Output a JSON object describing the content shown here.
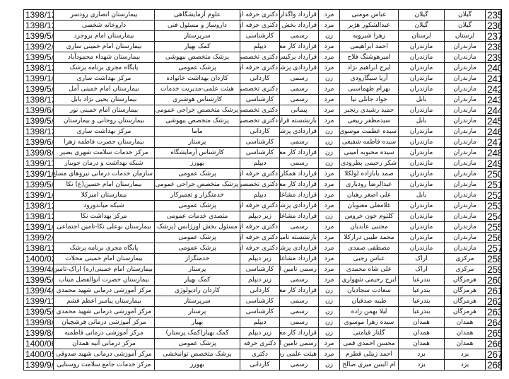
{
  "sheet": {
    "columns": [
      "date",
      "workplace",
      "field",
      "education",
      "contract",
      "gender",
      "name",
      "city",
      "province",
      "row_no"
    ],
    "rows": [
      [
        "1398/12",
        "بیمارستان انصاری رودسر",
        "علوم آزمایشگاهی",
        "دکتری حرفه ای",
        "قرارداد واگذاری",
        "مرد",
        "عباس مومنی",
        "گیلان",
        "گیلان",
        "235"
      ],
      [
        "1398/12",
        "داروخانه شخصی",
        "داروساز و مسئول فنی",
        "دکتری حرفه ای",
        "قرارداد بخش خصوصی",
        "مرد",
        "عبدالشکور هژبر",
        "گیلان",
        "گیلان",
        "236"
      ],
      [
        "1399/5/",
        "بیمارستان امام بروجرد",
        "سرپرستار",
        "کارشناسی",
        "رسمی",
        "زن",
        "زهرا شیرویه",
        "لرستان",
        "لرستان",
        "237"
      ],
      [
        "1399/2/",
        "بیمارستان امام خمینی ساری",
        "کمک بهیار",
        "دیپلم",
        "قرارداد کار معین",
        "مرد",
        "احمد ابراهیمی",
        "مازندران",
        "مازندران",
        "238"
      ],
      [
        "1399/5/",
        "بیمارستان شهداء محمودآباد",
        "پزشک متخصص بیهوشی",
        "دکتری تخصصی",
        "قرارداد پرکیس -خرید",
        "مرد",
        "امیرهوشنگ فلاح",
        "مازندران",
        "مازندران",
        "239"
      ],
      [
        "1398/12",
        "پایگاه مجری برنامه پزشک",
        "پزشک عمومی",
        "دکتری حرفه ای",
        "قراردادی پزشک",
        "مرد",
        "ایرج ابراهیم نژاد",
        "مازندران",
        "مازندران",
        "240"
      ],
      [
        "1399/1/",
        "مرکز بهداشت ساری",
        "کاردان بهداشت خانواده",
        "کاردانی",
        "رسمی",
        "زن",
        "آریا سیگارودی",
        "مازندران",
        "مازندران",
        "241"
      ],
      [
        "1399/5/",
        "بیمارستان امام خمینی آمل",
        "هیئت علمی-مدیریت خدمات",
        "دکتری تخصصی",
        "رسمی",
        "مرد",
        "بهرام طهماسبی",
        "مازندران",
        "مازندران",
        "242"
      ],
      [
        "1398/12",
        "بیمارستان یحیی نژاد بابل",
        "کارشناس هوشبری",
        "کارشناسی",
        "رسمی",
        "مرد",
        "جواد جانلی نیا",
        "بابل",
        "مازندران",
        "243"
      ],
      [
        "1399/6/",
        "بیمارستان امام خمینی نور",
        "پزشک متخصص جراحی عمومی",
        "دکتری تخصصی",
        "پیمانی",
        "مرد",
        "حمید رشیدی رنجبر",
        "مازندران",
        "مازندران",
        "244"
      ],
      [
        "1399/5/",
        "بیمارستان روحانی و بیمارستان",
        "پزشک متخصص بیهوشی",
        "دکتری تخصصی",
        "بازنشسته قرارداد پرکیس",
        "مرد",
        "سیدمظفر ربیعی",
        "بابل",
        "مازندران",
        "245"
      ],
      [
        "1398/12",
        "مرکز بهداشت ساری",
        "ماما",
        "کاردانی",
        "قراردادی پزشک",
        "زن",
        "سیده عظمت موسوی",
        "مازندران",
        "مازندران",
        "246"
      ],
      [
        "1399/6/",
        "بیمارستان حضرت فاطمه زهرا",
        "پرستار",
        "کارشناسی",
        "رسمی",
        "زن",
        "سیده فاطمه شفیعی",
        "مازندران",
        "مازندران",
        "247"
      ],
      [
        "1399/8/",
        "مرکز خدمات سلامت شهری بصیر",
        "کارشناس آزمایشگاه",
        "کارشناسی",
        "قرارداد کار معین",
        "زن",
        "سیده محبوبه امینی",
        "مازندران",
        "مازندران",
        "248"
      ],
      [
        "1399/11",
        "شبکه بهداشت و درمان جویبار",
        "بهورز",
        "دیپلم",
        "رسمی",
        "زن",
        "شکر رحیمی پطرودی",
        "مازندران",
        "مازندران",
        "249"
      ],
      [
        "1399/1/",
        "سازمان خدمات درمانی نیروهای مسلح",
        "پزشک عمومی",
        "دکتری حرفه ای",
        "قرارداد همکاری",
        "مرد",
        "صمد بابازاده لولکلا",
        "مازندران",
        "مازندران",
        "250"
      ],
      [
        "1399/5/",
        "بیمارستان امام حسین(ع) نکا",
        "پزشک متخصص جراحی عمومی",
        "دکتری تخصصی",
        "قرارداد کار معین",
        "مرد",
        "عبدالرضا رودباری",
        "مازندران",
        "مازندران",
        "251"
      ],
      [
        "1399/1/",
        "بیمارستان امیرکلا",
        "خدمتگزار و تعمیرکار",
        "دیپلم",
        "قرارداد مشاغل کارگری",
        "مرد",
        "علی اصغر رهبان",
        "بابل",
        "مازندران",
        "252"
      ],
      [
        "1398/12",
        "شبکه میاندورود",
        "پزشک عمومی",
        "دکتری حرفه ای",
        "قراردادی پزشک",
        "مرد",
        "غلامعلی معنوبان",
        "مازندران",
        "مازندران",
        "253"
      ],
      [
        "1398/12",
        "مرکز بهداشت نکا",
        "متصدی خدمات عمومی",
        "زیر دیپلم",
        "قرارداد مشاغل کارگری",
        "زن",
        "کلثوم خون خروس",
        "مازندران",
        "مازندران",
        "254"
      ],
      [
        "1399/1/",
        "بیمارستان بوعلی نکا-تامین اجتماعی",
        "مسئول بخش اورژانس (پزشک",
        "دکتری حرفه ای",
        "رسمی",
        "مرد",
        "مجتبی عابدیان",
        "مازندران",
        "مازندران",
        "255"
      ],
      [
        "1399/2/",
        "",
        "پزشک عمومی",
        "دکتری حرفه ای",
        "بازنشسته تامین",
        "مرد",
        "محمد طیبی درازکلا",
        "مازندران",
        "مازندران",
        "256"
      ],
      [
        "1398/12",
        "پایگاه مجری برنامه پزشک",
        "پزشک عمومی",
        "دکتری حرفه ای",
        "قراردادی پزشک",
        "مرد",
        "مصطفی صمدی",
        "مازندران",
        "مازندران",
        "257"
      ],
      [
        "1400/02",
        "بیمارستان امام خمینی محلات",
        "خدمتگزار",
        "زیر دیپلم",
        "قرارداد مشاغل کارگری",
        "مرد",
        "عباس رجبی",
        "اراک",
        "مرکزی",
        "258"
      ],
      [
        "1399/4/",
        "بیمارستان امام خمینی(ره) اراک-تامین",
        "پرستار",
        "کارشناسی",
        "رسمی تامین اجتماعی",
        "مرد",
        "علی شاه محمدی",
        "اراک",
        "مرکزی",
        "259"
      ],
      [
        "1399/5/",
        "بیمارستان حضرت ابوالفضل میناب",
        "کمک بهیار",
        "زیر دیپلم",
        "رسمی",
        "مرد",
        "ایرج رحیمی شهواری",
        "بندرعبا",
        "هرمزگان",
        "260"
      ],
      [
        "1399/4/",
        "مرکز آموزشی درمانی شهید محمدی",
        "کاردان رادیولوژی",
        "کاردانی",
        "قرارداد کار معین",
        "زن",
        "سعادت سجادیان",
        "بندرعبا",
        "هرمزگان",
        "261"
      ],
      [
        "1399/11",
        "بیمارستان پیامبر اعظم قشم",
        "سرپرستار",
        "کارشناسی",
        "رسمی",
        "زن",
        "طیبه صدقیان",
        "بندرعبا",
        "هرمزگان",
        "262"
      ],
      [
        "1399/5/",
        "مرکز آموزشی درمانی شهید محمدی",
        "پرستار",
        "کارشناسی",
        "رسمی",
        "زن",
        "لیلا بهمن زاده",
        "بندرعبا",
        "هرمزگان",
        "263"
      ],
      [
        "1399/8/",
        "مرکز آموزشی درمانی فرشچیان",
        "بهیار",
        "دیپلم",
        "رسمی",
        "زن",
        "سیده زهرا موسوی",
        "همدان",
        "همدان",
        "264"
      ],
      [
        "1399/8/",
        "مرکز آموزشی درمانی فاطمیه",
        "کمک بهیار(کمک پرستار)",
        "زیر دیپلم",
        "قرارداد کار معین",
        "زن",
        "گلناز قیامتی",
        "همدان",
        "همدان",
        "265"
      ],
      [
        "1400/06",
        "مرکز درمانی آتیه همدان",
        "پزشک عمومی",
        "دکتری حرفه",
        "رسمی تامین اجتماعی",
        "مرد",
        "محسن احمدی قمی",
        "همدان",
        "همدان",
        "266"
      ],
      [
        "1400/05",
        "مرکز آموزشی درمانی شهید صدوقی",
        "پزشک متخصص توانبخشی",
        "دکتری",
        "هیئت علمی رسمی",
        "مرد",
        "احمد زینلی قطرم",
        "یزد",
        "یزد",
        "267"
      ],
      [
        "1399/9/",
        "مرکز خدمات جامع سلامت روستایی",
        "بهورز",
        "کاردانی",
        "رسمی",
        "زن",
        "ام البنین میری صالح",
        "یزد",
        "یزد",
        "268"
      ]
    ]
  }
}
